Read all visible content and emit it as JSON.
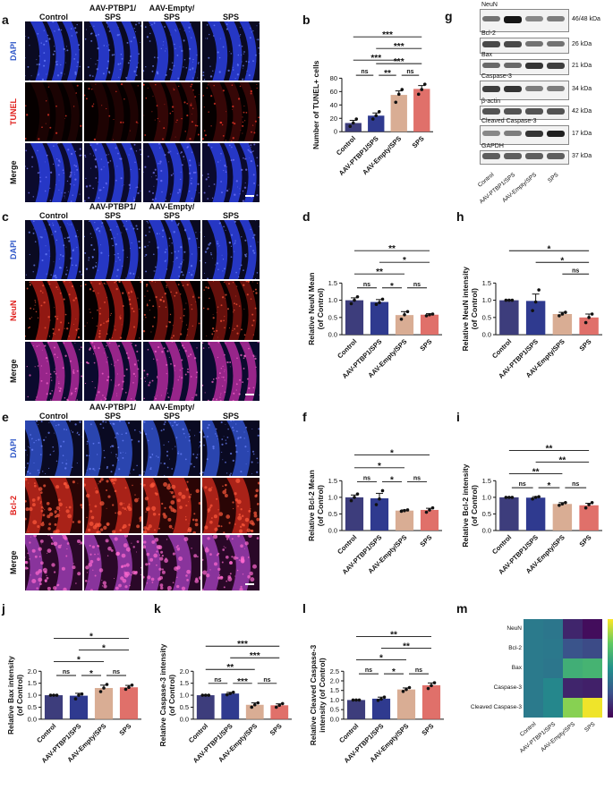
{
  "panels": {
    "a": {
      "letter": "a",
      "cols": [
        "Control",
        "AAV-PTBP1/\nSPS",
        "AAV-Empty/\nSPS",
        "SPS"
      ],
      "rows": [
        "DAPI",
        "TUNEL",
        "Merge"
      ],
      "row_colors": [
        "#2f57c8",
        "#e0201c",
        "#111111"
      ]
    },
    "c": {
      "letter": "c",
      "cols": [
        "Control",
        "AAV-PTBP1/\nSPS",
        "AAV-Empty/\nSPS",
        "SPS"
      ],
      "rows": [
        "DAPI",
        "NeuN",
        "Merge"
      ],
      "row_colors": [
        "#2f57c8",
        "#e0201c",
        "#111111"
      ]
    },
    "e": {
      "letter": "e",
      "cols": [
        "Control",
        "AAV-PTBP1/\nSPS",
        "AAV-Empty/\nSPS",
        "SPS"
      ],
      "rows": [
        "DAPI",
        "Bcl-2",
        "Merge"
      ],
      "row_colors": [
        "#2f57c8",
        "#e0201c",
        "#111111"
      ]
    },
    "g": {
      "letter": "g"
    },
    "m": {
      "letter": "m"
    }
  },
  "group_colors": [
    "#3d3d7c",
    "#2f3a8f",
    "#d9ad94",
    "#e0706a"
  ],
  "chart_data": [
    {
      "id": "b",
      "type": "bar",
      "ylabel": "Number of TUNEL+ cells",
      "categories": [
        "Control",
        "AAV-PTBP1/SPS",
        "AAV-Empty/SPS",
        "SPS"
      ],
      "values": [
        13,
        24,
        55,
        64
      ],
      "errors": [
        4,
        4,
        6,
        5
      ],
      "points": [
        [
          8,
          13,
          19
        ],
        [
          19,
          24,
          30
        ],
        [
          44,
          56,
          63
        ],
        [
          56,
          63,
          71
        ]
      ],
      "ylim": [
        0,
        80
      ],
      "yticks": [
        0,
        20,
        40,
        60,
        80
      ],
      "sig": [
        {
          "a": 0,
          "b": 1,
          "label": "ns",
          "level": 0
        },
        {
          "a": 1,
          "b": 2,
          "label": "**",
          "level": 0
        },
        {
          "a": 2,
          "b": 3,
          "label": "ns",
          "level": 0
        },
        {
          "a": 1,
          "b": 3,
          "label": "***",
          "level": 1
        },
        {
          "a": 0,
          "b": 2,
          "label": "***",
          "level": 1.3
        },
        {
          "a": 1,
          "b": 3,
          "label": "***",
          "level": 2.3
        },
        {
          "a": 0,
          "b": 3,
          "label": "***",
          "level": 3.3
        }
      ]
    },
    {
      "id": "d",
      "type": "bar",
      "ylabel": "Relative NeuN Mean\n(of Control)",
      "categories": [
        "Control",
        "AAV-PTBP1/SPS",
        "AAV-Empty/SPS",
        "SPS"
      ],
      "values": [
        1.0,
        0.95,
        0.57,
        0.58
      ],
      "errors": [
        0.07,
        0.07,
        0.1,
        0.03
      ],
      "points": [
        [
          0.9,
          1.0,
          1.1
        ],
        [
          0.88,
          0.93,
          1.03
        ],
        [
          0.45,
          0.58,
          0.67
        ],
        [
          0.55,
          0.58,
          0.6
        ]
      ],
      "ylim": [
        0,
        1.5
      ],
      "yticks": [
        0.0,
        0.5,
        1.0,
        1.5
      ],
      "sig": [
        {
          "a": 0,
          "b": 1,
          "label": "ns",
          "level": 0
        },
        {
          "a": 1,
          "b": 2,
          "label": "*",
          "level": 0
        },
        {
          "a": 2,
          "b": 3,
          "label": "ns",
          "level": 0
        },
        {
          "a": 0,
          "b": 2,
          "label": "**",
          "level": 1.2
        },
        {
          "a": 1,
          "b": 3,
          "label": "*",
          "level": 2.2
        },
        {
          "a": 0,
          "b": 3,
          "label": "**",
          "level": 3.2
        }
      ]
    },
    {
      "id": "h",
      "type": "bar",
      "ylabel": "Relative NeuN intensity\n(of Control)",
      "categories": [
        "Control",
        "AAV-PTBP1/SPS",
        "AAV-Empty/SPS",
        "SPS"
      ],
      "values": [
        1.0,
        0.98,
        0.6,
        0.5
      ],
      "errors": [
        0.01,
        0.2,
        0.05,
        0.1
      ],
      "points": [
        [
          1.0,
          1.0,
          1.0
        ],
        [
          0.7,
          0.95,
          1.3
        ],
        [
          0.55,
          0.6,
          0.65
        ],
        [
          0.35,
          0.5,
          0.6
        ]
      ],
      "ylim": [
        0,
        1.5
      ],
      "yticks": [
        0.0,
        0.5,
        1.0,
        1.5
      ],
      "sig": [
        {
          "a": 2,
          "b": 3,
          "label": "ns",
          "level": 0.6
        },
        {
          "a": 1,
          "b": 3,
          "label": "*",
          "level": 1.6
        },
        {
          "a": 0,
          "b": 3,
          "label": "*",
          "level": 2.6
        }
      ]
    },
    {
      "id": "f",
      "type": "bar",
      "ylabel": "Relative Bcl-2  Mean\n(of Control)",
      "categories": [
        "Control",
        "AAV-PTBP1/SPS",
        "AAV-Empty/SPS",
        "SPS"
      ],
      "values": [
        1.0,
        0.97,
        0.6,
        0.62
      ],
      "errors": [
        0.07,
        0.15,
        0.02,
        0.05
      ],
      "points": [
        [
          0.9,
          1.0,
          1.1
        ],
        [
          0.78,
          0.95,
          1.2
        ],
        [
          0.58,
          0.6,
          0.62
        ],
        [
          0.55,
          0.62,
          0.68
        ]
      ],
      "ylim": [
        0,
        1.5
      ],
      "yticks": [
        0.0,
        0.5,
        1.0,
        1.5
      ],
      "sig": [
        {
          "a": 0,
          "b": 1,
          "label": "ns",
          "level": 0
        },
        {
          "a": 1,
          "b": 2,
          "label": "*",
          "level": 0
        },
        {
          "a": 2,
          "b": 3,
          "label": "ns",
          "level": 0
        },
        {
          "a": 0,
          "b": 2,
          "label": "*",
          "level": 1.2
        },
        {
          "a": 0,
          "b": 3,
          "label": "*",
          "level": 2.3
        }
      ]
    },
    {
      "id": "i",
      "type": "bar",
      "ylabel": "Relative Bcl-2 intensity\n(of Control)",
      "categories": [
        "Control",
        "AAV-PTBP1/SPS",
        "AAV-Empty/SPS",
        "SPS"
      ],
      "values": [
        1.0,
        0.99,
        0.8,
        0.76
      ],
      "errors": [
        0.01,
        0.03,
        0.04,
        0.06
      ],
      "points": [
        [
          1.0,
          1.0,
          1.0
        ],
        [
          0.95,
          1.0,
          1.02
        ],
        [
          0.76,
          0.8,
          0.84
        ],
        [
          0.68,
          0.78,
          0.84
        ]
      ],
      "ylim": [
        0,
        1.5
      ],
      "yticks": [
        0.0,
        0.5,
        1.0,
        1.5
      ],
      "sig": [
        {
          "a": 0,
          "b": 1,
          "label": "ns",
          "level": 0
        },
        {
          "a": 1,
          "b": 2,
          "label": "*",
          "level": 0
        },
        {
          "a": 2,
          "b": 3,
          "label": "ns",
          "level": 0
        },
        {
          "a": 0,
          "b": 2,
          "label": "**",
          "level": 1.2
        },
        {
          "a": 1,
          "b": 3,
          "label": "**",
          "level": 2.2
        },
        {
          "a": 0,
          "b": 3,
          "label": "**",
          "level": 3.2
        }
      ]
    },
    {
      "id": "j",
      "type": "bar",
      "ylabel": "Relative Bax intensity\n(of Control)",
      "categories": [
        "Control",
        "AAV-PTBP1/SPS",
        "AAV-Empty/SPS",
        "SPS"
      ],
      "values": [
        1.0,
        0.98,
        1.3,
        1.33
      ],
      "errors": [
        0.01,
        0.1,
        0.12,
        0.08
      ],
      "points": [
        [
          1.0,
          1.0,
          1.0
        ],
        [
          0.85,
          1.0,
          1.05
        ],
        [
          1.15,
          1.3,
          1.45
        ],
        [
          1.25,
          1.33,
          1.42
        ]
      ],
      "ylim": [
        0,
        2.0
      ],
      "yticks": [
        0.0,
        0.5,
        1.0,
        1.5,
        2.0
      ],
      "sig": [
        {
          "a": 0,
          "b": 1,
          "label": "ns",
          "level": 0
        },
        {
          "a": 1,
          "b": 2,
          "label": "*",
          "level": 0
        },
        {
          "a": 2,
          "b": 3,
          "label": "ns",
          "level": 0
        },
        {
          "a": 0,
          "b": 2,
          "label": "*",
          "level": 1.2
        },
        {
          "a": 1,
          "b": 3,
          "label": "*",
          "level": 2.2
        },
        {
          "a": 0,
          "b": 3,
          "label": "*",
          "level": 3.2
        }
      ]
    },
    {
      "id": "k",
      "type": "bar",
      "ylabel": "Relative Caspase-3 intensity\n(of Control)",
      "categories": [
        "Control",
        "AAV-PTBP1/SPS",
        "AAV-Empty/SPS",
        "SPS"
      ],
      "values": [
        1.0,
        1.07,
        0.6,
        0.58
      ],
      "errors": [
        0.01,
        0.05,
        0.08,
        0.06
      ],
      "points": [
        [
          1.0,
          1.0,
          1.0
        ],
        [
          1.02,
          1.07,
          1.12
        ],
        [
          0.5,
          0.6,
          0.68
        ],
        [
          0.5,
          0.58,
          0.65
        ]
      ],
      "ylim": [
        0,
        2.0
      ],
      "yticks": [
        0.0,
        0.5,
        1.0,
        1.5,
        2.0
      ],
      "sig": [
        {
          "a": 0,
          "b": 1,
          "label": "ns",
          "level": 0
        },
        {
          "a": 1,
          "b": 2,
          "label": "***",
          "level": 0
        },
        {
          "a": 2,
          "b": 3,
          "label": "ns",
          "level": 0
        },
        {
          "a": 0,
          "b": 2,
          "label": "**",
          "level": 1.2
        },
        {
          "a": 1,
          "b": 3,
          "label": "***",
          "level": 2.2
        },
        {
          "a": 0,
          "b": 3,
          "label": "***",
          "level": 3.2
        }
      ]
    },
    {
      "id": "l",
      "type": "bar",
      "ylabel": "Relative Cleaved Caspase-3\nintensity (of Control)",
      "categories": [
        "Control",
        "AAV-PTBP1/SPS",
        "AAV-Empty/SPS",
        "SPS"
      ],
      "values": [
        1.0,
        1.07,
        1.55,
        1.77
      ],
      "errors": [
        0.01,
        0.08,
        0.08,
        0.12
      ],
      "points": [
        [
          1.0,
          1.0,
          1.0
        ],
        [
          0.98,
          1.05,
          1.15
        ],
        [
          1.45,
          1.55,
          1.65
        ],
        [
          1.6,
          1.75,
          1.9
        ]
      ],
      "ylim": [
        0,
        2.5
      ],
      "yticks": [
        0.0,
        0.5,
        1.0,
        1.5,
        2.0,
        2.5
      ],
      "sig": [
        {
          "a": 0,
          "b": 1,
          "label": "ns",
          "level": 0
        },
        {
          "a": 1,
          "b": 2,
          "label": "*",
          "level": 0
        },
        {
          "a": 2,
          "b": 3,
          "label": "ns",
          "level": 0
        },
        {
          "a": 0,
          "b": 2,
          "label": "*",
          "level": 1.2
        },
        {
          "a": 1,
          "b": 3,
          "label": "**",
          "level": 2.2
        },
        {
          "a": 0,
          "b": 3,
          "label": "**",
          "level": 3.2
        }
      ]
    },
    {
      "id": "m",
      "type": "heatmap",
      "rows": [
        "NeuN",
        "Bcl-2",
        "Bax",
        "Caspase-3",
        "Cleaved Caspase-3"
      ],
      "cols": [
        "Control",
        "AAV-PTBP1/SPS",
        "AAV-Empty/SPS",
        "SPS"
      ],
      "values": [
        [
          1.0,
          0.98,
          0.6,
          0.5
        ],
        [
          1.0,
          0.99,
          0.8,
          0.76
        ],
        [
          1.0,
          0.98,
          1.3,
          1.33
        ],
        [
          1.0,
          1.07,
          0.6,
          0.58
        ],
        [
          1.0,
          1.07,
          1.55,
          1.77
        ]
      ],
      "colorbar_ticks": [
        "1.5",
        "1.0"
      ],
      "range": [
        0.45,
        1.8
      ]
    }
  ],
  "blot": {
    "bands": [
      {
        "name": "NeuN",
        "kda": "46/48 kDa",
        "intensity": [
          0.55,
          1.0,
          0.45,
          0.5
        ]
      },
      {
        "name": "Bcl-2",
        "kda": "26 kDa",
        "intensity": [
          0.75,
          0.75,
          0.55,
          0.55
        ]
      },
      {
        "name": "Bax",
        "kda": "21 kDa",
        "intensity": [
          0.6,
          0.6,
          0.85,
          0.8
        ]
      },
      {
        "name": "Caspase-3",
        "kda": "34 kDa",
        "intensity": [
          0.8,
          0.85,
          0.5,
          0.5
        ]
      },
      {
        "name": "β-actin",
        "kda": "42 kDa",
        "intensity": [
          0.7,
          0.7,
          0.7,
          0.7
        ]
      },
      {
        "name": "Cleaved Caspase-3",
        "kda": "17 kDa",
        "intensity": [
          0.45,
          0.5,
          0.85,
          0.95
        ]
      },
      {
        "name": "GAPDH",
        "kda": "37 kDa",
        "intensity": [
          0.65,
          0.65,
          0.65,
          0.65
        ]
      }
    ],
    "lanes": [
      "Control",
      "AAV-PTBP1/SPS",
      "AAV-Empty/SPS",
      "SPS"
    ]
  }
}
